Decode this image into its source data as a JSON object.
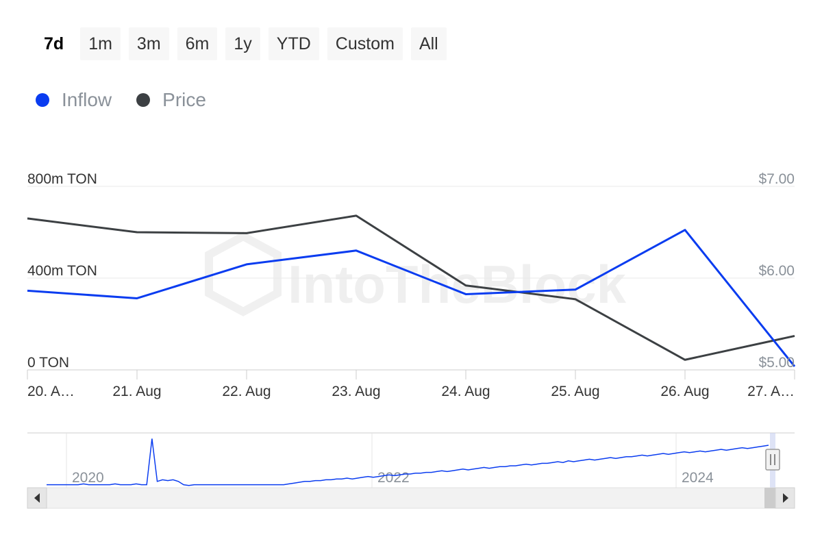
{
  "range_selector": {
    "buttons": [
      {
        "label": "7d",
        "active": true
      },
      {
        "label": "1m",
        "active": false
      },
      {
        "label": "3m",
        "active": false
      },
      {
        "label": "6m",
        "active": false
      },
      {
        "label": "1y",
        "active": false
      },
      {
        "label": "YTD",
        "active": false
      },
      {
        "label": "Custom",
        "active": false
      },
      {
        "label": "All",
        "active": false
      }
    ]
  },
  "legend": [
    {
      "label": "Inflow",
      "color": "#0a3cf0"
    },
    {
      "label": "Price",
      "color": "#3c4043"
    }
  ],
  "watermark": "IntoTheBlock",
  "chart_data": {
    "type": "line",
    "categories": [
      "20. A…",
      "21. Aug",
      "22. Aug",
      "23. Aug",
      "24. Aug",
      "25. Aug",
      "26. Aug",
      "27. A…"
    ],
    "series": [
      {
        "name": "Inflow",
        "axis": "left",
        "color": "#0a3cf0",
        "values": [
          345,
          312,
          460,
          520,
          330,
          350,
          610,
          15
        ]
      },
      {
        "name": "Price",
        "axis": "right",
        "color": "#3c4043",
        "values": [
          6.65,
          6.5,
          6.49,
          6.68,
          5.92,
          5.77,
          5.11,
          5.37
        ]
      }
    ],
    "y_left": {
      "min": 0,
      "max": 800,
      "ticks": [
        {
          "value": 0,
          "label": "0 TON"
        },
        {
          "value": 400,
          "label": "400m TON"
        },
        {
          "value": 800,
          "label": "800m TON"
        }
      ]
    },
    "y_right": {
      "min": 5,
      "max": 7,
      "ticks": [
        {
          "value": 5,
          "label": "$5.00"
        },
        {
          "value": 6,
          "label": "$6.00"
        },
        {
          "value": 7,
          "label": "$7.00"
        }
      ]
    },
    "grid": true,
    "legend_position": "top-left",
    "navigator": {
      "labels": [
        "2020",
        "2022",
        "2024"
      ],
      "series_color": "#0a3cf0",
      "values": [
        2,
        2,
        2,
        2,
        2,
        2,
        2,
        3,
        2,
        2,
        2,
        2,
        2,
        3,
        2,
        2,
        2,
        3,
        2,
        2,
        58,
        6,
        8,
        7,
        8,
        6,
        2,
        1,
        2,
        2,
        2,
        2,
        2,
        2,
        2,
        2,
        2,
        2,
        2,
        2,
        2,
        2,
        2,
        2,
        2,
        2,
        3,
        4,
        5,
        6,
        6,
        7,
        7,
        8,
        8,
        9,
        9,
        10,
        9,
        10,
        11,
        12,
        11,
        12,
        13,
        14,
        13,
        14,
        15,
        15,
        16,
        16,
        17,
        17,
        18,
        19,
        18,
        19,
        20,
        21,
        20,
        21,
        22,
        23,
        22,
        23,
        24,
        24,
        25,
        25,
        26,
        27,
        26,
        27,
        28,
        28,
        29,
        30,
        29,
        31,
        30,
        31,
        32,
        33,
        32,
        33,
        34,
        35,
        34,
        35,
        36,
        36,
        37,
        38,
        37,
        38,
        39,
        40,
        39,
        40,
        41,
        42,
        41,
        42,
        43,
        42,
        43,
        44,
        45,
        44,
        45,
        46,
        47,
        46,
        47,
        48,
        49,
        50
      ]
    }
  }
}
